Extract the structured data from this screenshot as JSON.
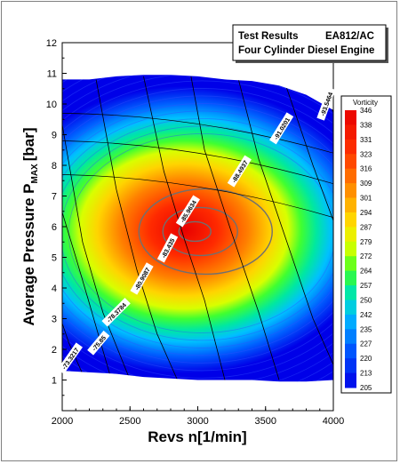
{
  "title": {
    "line1_left": "Test Results",
    "line1_right": "EA812/AC",
    "line2": "Four Cylinder Diesel Engine"
  },
  "chart_data": {
    "type": "heatmap",
    "xlabel": "Revs n[1/min]",
    "ylabel": "Average Pressure P",
    "ylabel_sub": "MAX",
    "ylabel_unit": "[bar]",
    "xlim": [
      2000,
      4000
    ],
    "ylim": [
      0,
      12
    ],
    "x_ticks": [
      2000,
      2500,
      3000,
      3500,
      4000
    ],
    "y_ticks": [
      1,
      2,
      3,
      4,
      5,
      6,
      7,
      8,
      9,
      10,
      11,
      12
    ],
    "colorbar_title": "Vorticity",
    "colorbar_levels": [
      346,
      338,
      331,
      323,
      316,
      309,
      301,
      294,
      287,
      279,
      272,
      264,
      257,
      250,
      242,
      235,
      227,
      220,
      213,
      205
    ],
    "peak": {
      "x": 2900,
      "y": 5.9,
      "value": 346
    },
    "iso_labels": [
      "-93.5464",
      "-91.0201",
      "-88.4937",
      "-85.9634",
      "-83.435",
      "-80.9087",
      "-78.3784",
      "-75.85",
      "-73.3217"
    ],
    "colors": {
      "high": "#e80000",
      "mid": "#ffff00",
      "low": "#0000ff"
    }
  }
}
